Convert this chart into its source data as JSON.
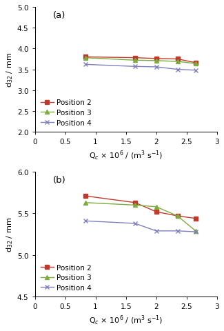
{
  "subplot_a": {
    "label": "(a)",
    "x": [
      0.83,
      1.65,
      2.0,
      2.35,
      2.65
    ],
    "pos2_y": [
      3.8,
      3.78,
      3.76,
      3.75,
      3.66
    ],
    "pos3_y": [
      3.78,
      3.72,
      3.71,
      3.69,
      3.64
    ],
    "pos4_y": [
      3.62,
      3.57,
      3.56,
      3.5,
      3.48
    ],
    "ylim": [
      2.0,
      5.0
    ],
    "yticks": [
      2.0,
      2.5,
      3.0,
      3.5,
      4.0,
      4.5,
      5.0
    ],
    "xlim": [
      0,
      3.0
    ],
    "xticks": [
      0,
      0.5,
      1.0,
      1.5,
      2.0,
      2.5,
      3.0
    ],
    "xticklabels": [
      "0",
      "0.5",
      "1",
      "1.5",
      "2",
      "2.5",
      "3"
    ],
    "ylabel": "d$_{32}$ / mm",
    "xlabel": "Q$_c$ × 10$^6$ / (m$^3$ s$^{-1}$)"
  },
  "subplot_b": {
    "label": "(b)",
    "x": [
      0.83,
      1.65,
      2.0,
      2.35,
      2.65
    ],
    "pos2_y": [
      5.71,
      5.63,
      5.52,
      5.47,
      5.44
    ],
    "pos3_y": [
      5.63,
      5.6,
      5.58,
      5.47,
      5.29
    ],
    "pos4_y": [
      5.41,
      5.38,
      5.29,
      5.29,
      5.28
    ],
    "ylim": [
      4.5,
      6.0
    ],
    "yticks": [
      4.5,
      5.0,
      5.5,
      6.0
    ],
    "xlim": [
      0,
      3.0
    ],
    "xticks": [
      0,
      0.5,
      1.0,
      1.5,
      2.0,
      2.5,
      3.0
    ],
    "xticklabels": [
      "0",
      "0.5",
      "1",
      "1.5",
      "2",
      "2.5",
      "3"
    ],
    "ylabel": "d$_{32}$ / mm",
    "xlabel": "Q$_c$ × 10$^6$ / (m$^3$ s$^{-1}$)"
  },
  "colors": {
    "pos2": "#c0392b",
    "pos3": "#7dab3c",
    "pos4": "#8080c0"
  },
  "legend_labels": [
    "Position 2",
    "Position 3",
    "Position 4"
  ],
  "markers": {
    "pos2": "s",
    "pos3": "^",
    "pos4": "x"
  },
  "markersize": 4,
  "linewidth": 1.0,
  "background_color": "#ffffff",
  "tick_fontsize": 7.5,
  "label_fontsize": 8.0,
  "legend_fontsize": 7.5
}
